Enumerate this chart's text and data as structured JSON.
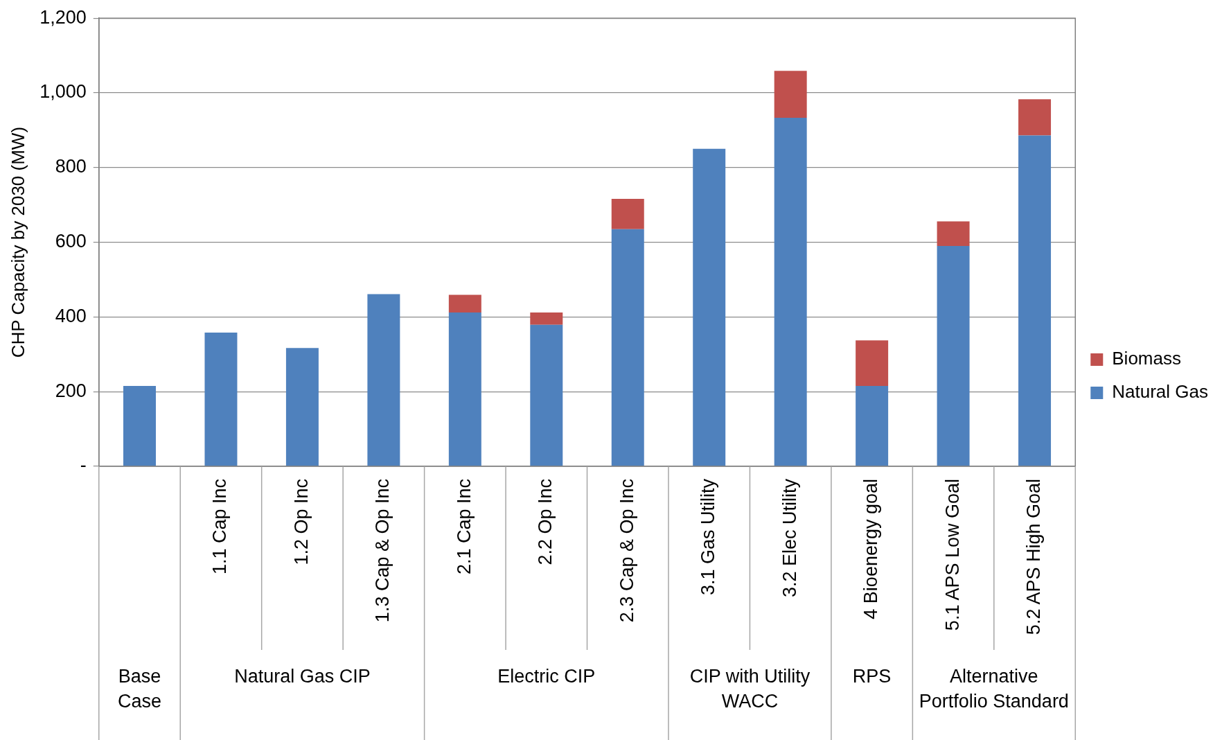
{
  "chart_data": {
    "type": "bar",
    "stacked": true,
    "ylabel": "CHP Capacity by 2030 (MW)",
    "categories": [
      null,
      "1.1 Cap Inc",
      "1.2 Op Inc",
      "1.3 Cap & Op Inc",
      "2.1 Cap Inc",
      "2.2 Op Inc",
      "2.3 Cap & Op Inc",
      "3.1 Gas Utility",
      "3.2 Elec Utility",
      "4 Bioenergy goal",
      "5.1 APS Low Goal",
      "5.2 APS High Goal"
    ],
    "series": [
      {
        "name": "Natural Gas",
        "color": "#4f81bd",
        "values": [
          215,
          358,
          317,
          461,
          412,
          379,
          635,
          850,
          933,
          215,
          590,
          886
        ]
      },
      {
        "name": "Biomass",
        "color": "#c0504d",
        "values": [
          null,
          null,
          null,
          null,
          47,
          33,
          81,
          null,
          126,
          122,
          66,
          97
        ]
      }
    ],
    "ylim": [
      0,
      1200
    ],
    "yticks": [
      {
        "value": 0,
        "label": "-"
      },
      200,
      400,
      600,
      800,
      {
        "value": 1000,
        "label": "1,000"
      },
      {
        "value": 1200,
        "label": "1,200"
      }
    ],
    "grid": "y",
    "legend": "right",
    "annotations": [
      "Base Case",
      "Natural Gas CIP",
      "Electric CIP",
      "CIP with Utility WACC",
      "RPS",
      "Alternative Portfolio Standard"
    ]
  }
}
